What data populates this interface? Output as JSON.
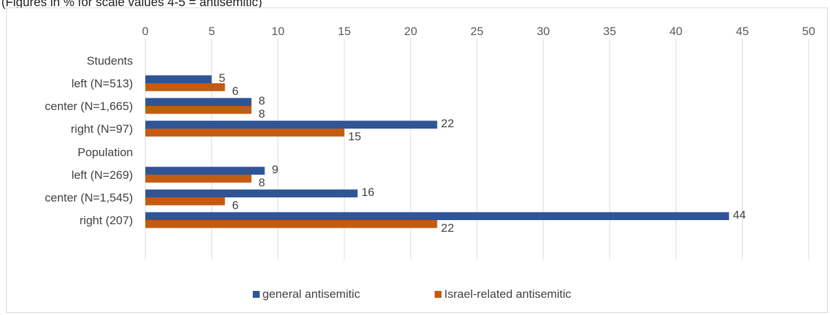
{
  "caption": "(Figures in % for scale values 4-5 = antisemitic)",
  "chart_data": {
    "type": "bar",
    "orientation": "horizontal",
    "xlim": [
      0,
      50
    ],
    "xticks": [
      0,
      5,
      10,
      15,
      20,
      25,
      30,
      35,
      40,
      45,
      50
    ],
    "x_axis_position": "top",
    "grid": true,
    "legend_position": "bottom",
    "groups": [
      {
        "label": "Students",
        "categories": [
          {
            "label": "left (N=513)",
            "values": [
              5,
              6
            ]
          },
          {
            "label": "center (N=1,665)",
            "values": [
              8,
              8
            ]
          },
          {
            "label": "right (N=97)",
            "values": [
              22,
              15
            ]
          }
        ]
      },
      {
        "label": "Population",
        "categories": [
          {
            "label": "left (N=269)",
            "values": [
              9,
              8
            ]
          },
          {
            "label": "center (N=1,545)",
            "values": [
              16,
              6
            ]
          },
          {
            "label": "right (207)",
            "values": [
              44,
              22
            ]
          }
        ]
      }
    ],
    "series": [
      {
        "name": "general antisemitic",
        "color": "#2f5597"
      },
      {
        "name": "Israel-related antisemitic",
        "color": "#c55a11"
      }
    ]
  }
}
